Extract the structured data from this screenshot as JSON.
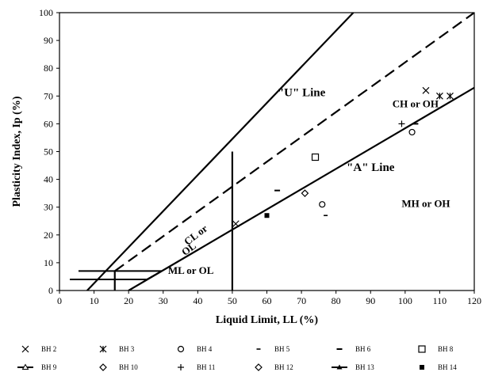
{
  "chart_data": {
    "type": "scatter",
    "title": "",
    "xlabel": "Liquid Limit, LL (%)",
    "ylabel": "Plasticity Index, Ip (%)",
    "xlim": [
      0,
      120
    ],
    "ylim": [
      0,
      100
    ],
    "x_ticks": [
      "0",
      "10",
      "20",
      "30",
      "40",
      "50",
      "60",
      "70",
      "80",
      "90",
      "100",
      "110",
      "120"
    ],
    "y_ticks": [
      "0",
      "10",
      "20",
      "30",
      "40",
      "50",
      "60",
      "70",
      "80",
      "90",
      "100"
    ],
    "grid": false,
    "legend_position": "bottom",
    "reference_lines": [
      {
        "name": "\"U\" Line",
        "style": "solid",
        "points": [
          [
            8,
            0
          ],
          [
            85,
            100
          ]
        ]
      },
      {
        "name": "\"A\" Line",
        "style": "solid",
        "points": [
          [
            20,
            0
          ],
          [
            120,
            73
          ]
        ]
      },
      {
        "name": "",
        "style": "dashed",
        "points": [
          [
            16,
            7
          ],
          [
            120,
            100
          ]
        ]
      },
      {
        "name": "",
        "style": "solid",
        "points": [
          [
            50,
            0
          ],
          [
            50,
            50
          ]
        ]
      },
      {
        "name": "",
        "style": "solid",
        "points": [
          [
            16,
            0
          ],
          [
            16,
            7
          ]
        ]
      }
    ],
    "zone_labels": [
      {
        "text": "CH or OH",
        "x": 103,
        "y": 66
      },
      {
        "text": "MH or OH",
        "x": 106,
        "y": 30
      },
      {
        "text": "CL or",
        "x": 40,
        "y": 19,
        "rotate": -37
      },
      {
        "text": "OL",
        "x": 38,
        "y": 14,
        "rotate": -37
      },
      {
        "text": "ML or OL",
        "x": 38,
        "y": 6
      },
      {
        "text": "\"U\" Line",
        "x": 70,
        "y": 70
      },
      {
        "text": "\"A\" Line",
        "x": 90,
        "y": 43
      }
    ],
    "series": [
      {
        "name": "BH 2",
        "marker": "x",
        "points": [
          [
            51,
            24
          ],
          [
            106,
            72
          ]
        ]
      },
      {
        "name": "BH 3",
        "marker": "asterisk",
        "points": [
          [
            110,
            70
          ],
          [
            113,
            70
          ]
        ]
      },
      {
        "name": "BH 4",
        "marker": "circle-open",
        "points": [
          [
            76,
            31
          ],
          [
            102,
            57
          ]
        ]
      },
      {
        "name": "BH 5",
        "marker": "dash-short",
        "points": [
          [
            77,
            27
          ]
        ]
      },
      {
        "name": "BH 6",
        "marker": "dash",
        "points": [
          [
            63,
            36
          ],
          [
            103,
            60
          ]
        ]
      },
      {
        "name": "BH 8",
        "marker": "square-open",
        "points": [
          [
            74,
            48
          ]
        ]
      },
      {
        "name": "BH 9",
        "marker": "line-triangle",
        "points": []
      },
      {
        "name": "BH 10",
        "marker": "diamond-open",
        "points": [
          [
            71,
            35
          ]
        ]
      },
      {
        "name": "BH 11",
        "marker": "plus",
        "points": [
          [
            99,
            60
          ]
        ]
      },
      {
        "name": "BH 12",
        "marker": "diamond-open",
        "points": []
      },
      {
        "name": "BH 13",
        "marker": "line-triangle-filled",
        "points": []
      },
      {
        "name": "BH 14",
        "marker": "square-filled",
        "points": [
          [
            60,
            27
          ]
        ]
      }
    ]
  }
}
